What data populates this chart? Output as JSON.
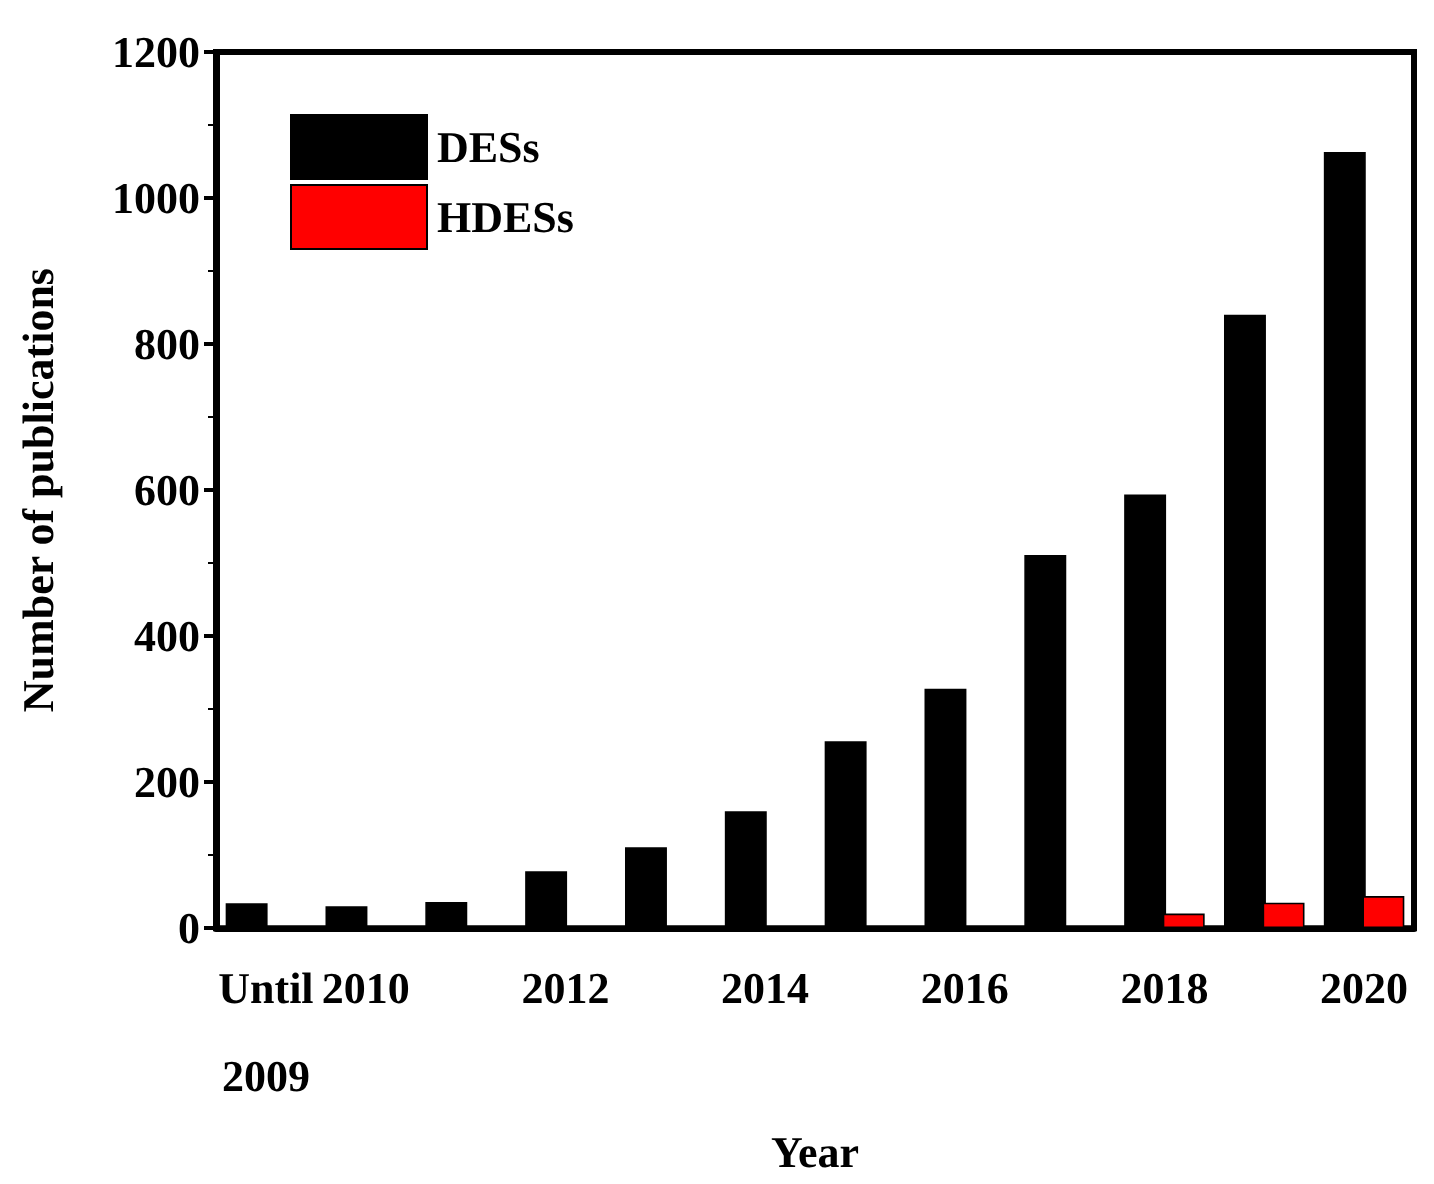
{
  "chart_data": {
    "type": "bar",
    "xlabel": "Year",
    "ylabel": "Number of publications",
    "categories": [
      "Until\n2009",
      "2010",
      null,
      "2012",
      null,
      "2014",
      null,
      "2016",
      null,
      "2018",
      null,
      "2020"
    ],
    "series": [
      {
        "name": "DESs",
        "color": "#000000",
        "values": [
          34,
          30,
          36,
          78,
          111,
          160,
          256,
          328,
          511,
          594,
          840,
          1063
        ]
      },
      {
        "name": "HDESs",
        "color": "#ff0000",
        "values": [
          null,
          null,
          null,
          null,
          null,
          null,
          null,
          null,
          null,
          20,
          35,
          44
        ]
      }
    ],
    "ylim": [
      0,
      1200
    ],
    "yticks": [
      0,
      200,
      400,
      600,
      800,
      1000,
      1200
    ],
    "grid": false,
    "legend": "top left"
  }
}
